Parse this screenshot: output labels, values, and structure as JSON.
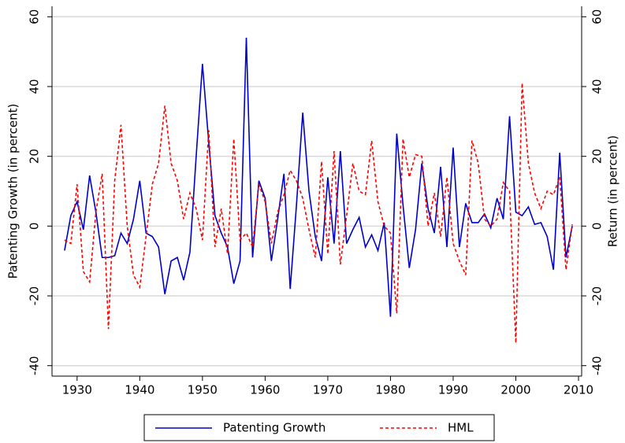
{
  "chart_data": {
    "type": "line",
    "y_label": "Patenting Growth (in percent)",
    "y2_label": "Return (in percent)",
    "x": [
      1928,
      1929,
      1930,
      1931,
      1932,
      1933,
      1934,
      1935,
      1936,
      1937,
      1938,
      1939,
      1940,
      1941,
      1942,
      1943,
      1944,
      1945,
      1946,
      1947,
      1948,
      1949,
      1950,
      1951,
      1952,
      1953,
      1954,
      1955,
      1956,
      1957,
      1958,
      1959,
      1960,
      1961,
      1962,
      1963,
      1964,
      1965,
      1966,
      1967,
      1968,
      1969,
      1970,
      1971,
      1972,
      1973,
      1974,
      1975,
      1976,
      1977,
      1978,
      1979,
      1980,
      1981,
      1982,
      1983,
      1984,
      1985,
      1986,
      1987,
      1988,
      1989,
      1990,
      1991,
      1992,
      1993,
      1994,
      1995,
      1996,
      1997,
      1998,
      1999,
      2000,
      2001,
      2002,
      2003,
      2004,
      2005,
      2006,
      2007,
      2008,
      2009
    ],
    "series": [
      {
        "name": "Patenting Growth",
        "color": "#0000cc",
        "dash": false,
        "axis": "y",
        "values": [
          -7,
          3,
          7,
          -1,
          14.5,
          4,
          -9,
          -9,
          -8.5,
          -2,
          -5,
          2,
          13,
          -2,
          -3,
          -6,
          -19.5,
          -10,
          -9,
          -15.5,
          -7.5,
          20,
          46.5,
          24,
          3,
          -2,
          -6,
          -16.5,
          -10,
          54,
          -9,
          13,
          8,
          -10,
          2,
          15,
          -18,
          6,
          32.5,
          10,
          -3,
          -10,
          14,
          -5,
          21.5,
          -5,
          -1,
          2.5,
          -6,
          -2.5,
          -7,
          1,
          -26,
          26.5,
          6,
          -12,
          -1,
          18,
          5,
          -2,
          17,
          -6,
          22.5,
          -6,
          6.5,
          1,
          1,
          3.5,
          -0.5,
          8,
          2,
          31.5,
          4,
          3,
          5.5,
          0.5,
          1,
          -3,
          -12.5,
          21,
          -9,
          0
        ]
      },
      {
        "name": "HML",
        "color": "#ff0000",
        "dash": true,
        "axis": "y2",
        "values": [
          -4,
          -5,
          12,
          -13,
          -16,
          4,
          15,
          -29.5,
          13,
          29,
          0,
          -14,
          -17.5,
          -3,
          12,
          18,
          34.5,
          18,
          13,
          2,
          9.5,
          5,
          -4,
          27.5,
          -6,
          5,
          -8,
          25,
          -4,
          -2,
          -6,
          12,
          7,
          -5,
          4,
          9,
          16,
          13,
          8,
          -1,
          -9,
          18.5,
          -8,
          21.5,
          -11,
          3,
          18,
          10,
          9,
          24.5,
          7,
          0,
          -2,
          -25,
          25,
          14,
          20.5,
          20,
          0,
          9.5,
          -3,
          14,
          -5,
          -10,
          -14,
          24.5,
          18,
          2,
          0,
          2,
          12.5,
          10,
          -33.5,
          41,
          18,
          9.5,
          5,
          10,
          9,
          14,
          -12.5,
          0.5
        ]
      }
    ],
    "xlim": [
      1926,
      2010.5
    ],
    "xticks": [
      1930,
      1940,
      1950,
      1960,
      1970,
      1980,
      1990,
      2000,
      2010
    ],
    "ylim": [
      -43,
      63
    ],
    "yticks": [
      -40,
      -20,
      0,
      20,
      40,
      60
    ],
    "y2lim": [
      -43,
      63
    ],
    "y2ticks": [
      -40,
      -20,
      0,
      20,
      40,
      60
    ],
    "grid": true,
    "legend": "bottom"
  }
}
